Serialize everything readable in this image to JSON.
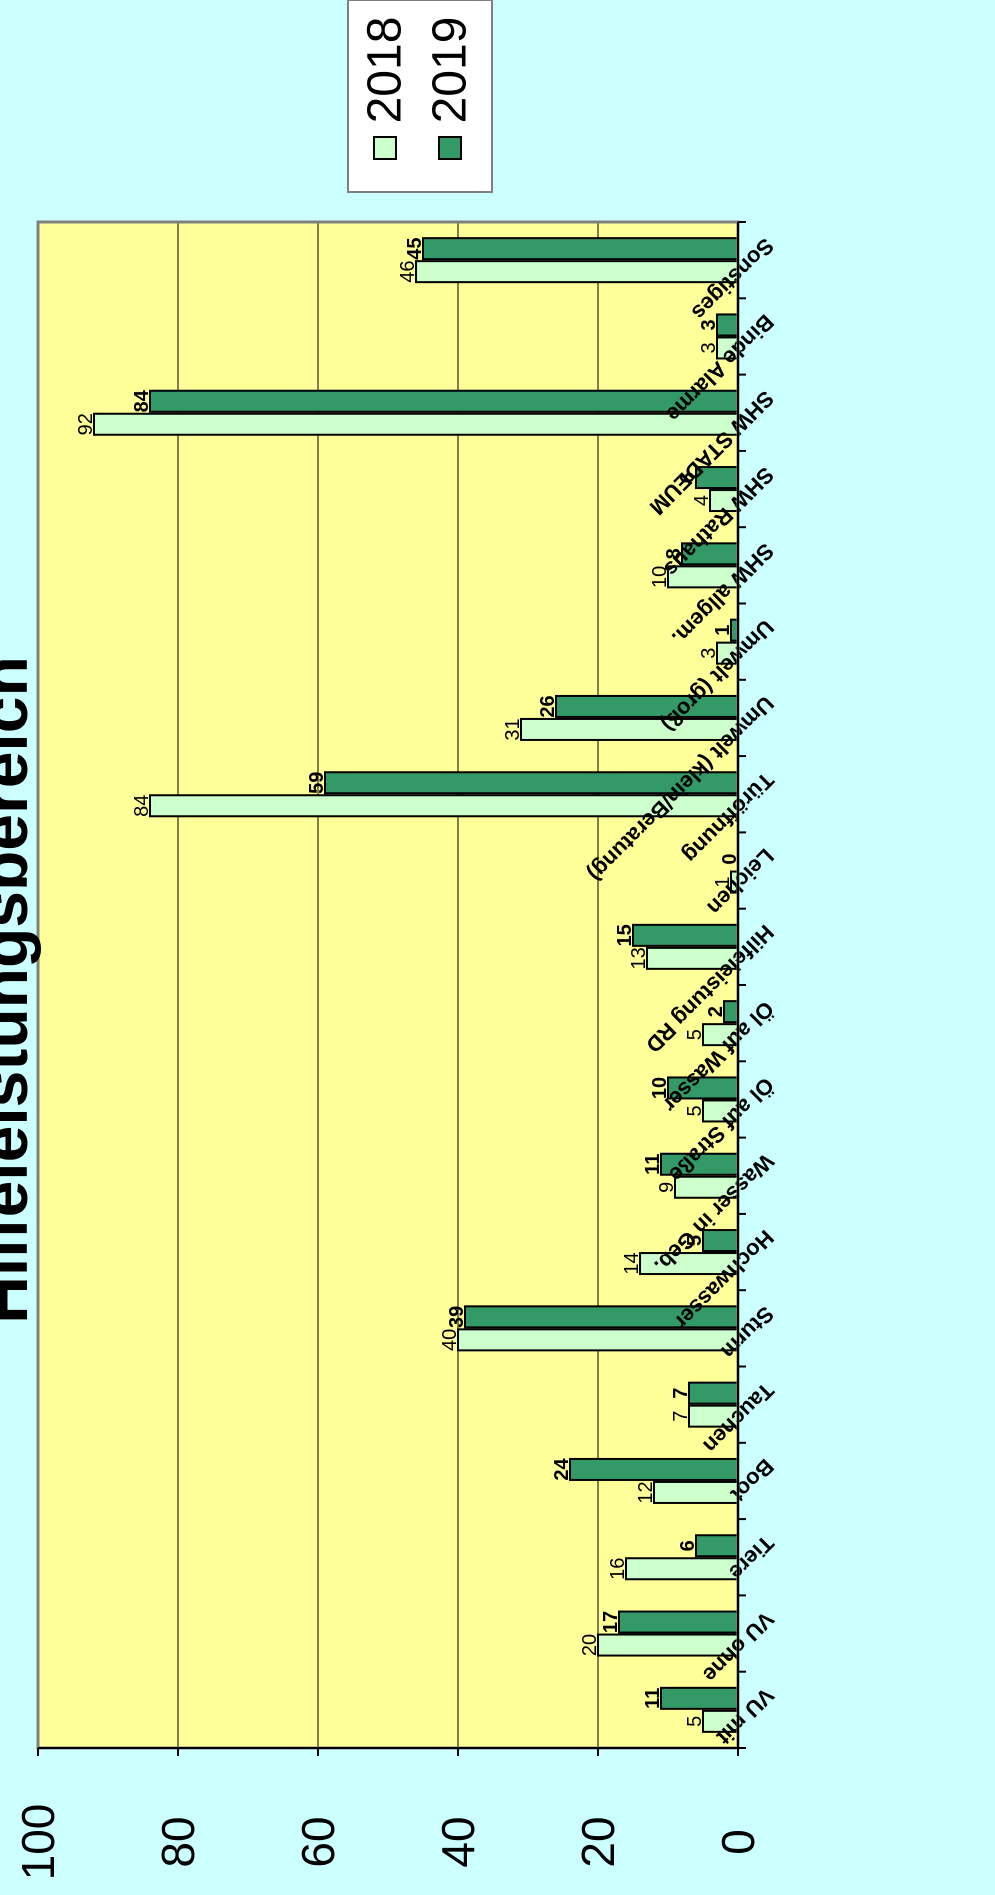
{
  "chart_data": {
    "type": "bar",
    "title": "Hilfeleistungsbereich",
    "categories": [
      "VU mit",
      "VU ohne",
      "Tiere",
      "Boot",
      "Tauchen",
      "Sturm",
      "Hochwasser",
      "Wasser in Geb.",
      "Öl auf Straße",
      "Öl auf Wasser",
      "Hilfeleistung RD",
      "Leichen",
      "Türöffnung",
      "Umwelt (klein/Beratung)",
      "Umwelt (groß)",
      "SHW allgem.",
      "SHW Rathaus",
      "SHW STADEUM",
      "Binde Alarme",
      "Sonstiges"
    ],
    "series": [
      {
        "name": "2018",
        "values": [
          5,
          20,
          16,
          12,
          7,
          40,
          14,
          9,
          5,
          5,
          13,
          1,
          84,
          31,
          3,
          10,
          4,
          92,
          3,
          46
        ]
      },
      {
        "name": "2019",
        "values": [
          11,
          17,
          6,
          24,
          7,
          39,
          5,
          11,
          10,
          2,
          15,
          0,
          59,
          26,
          1,
          8,
          6,
          84,
          3,
          45
        ]
      }
    ],
    "ylim": [
      0,
      100
    ],
    "yticks": [
      0,
      20,
      40,
      60,
      80,
      100
    ],
    "grid": true,
    "legend": "top-right",
    "orientation": "rotated",
    "colors": {
      "page_bg": "#ccffff",
      "plot_bg": "#ffff99",
      "bar_2018": "#ccffcc",
      "bar_2019": "#339966",
      "bar_stroke": "#000000",
      "grid": "#000000",
      "frame": "#808080"
    }
  }
}
